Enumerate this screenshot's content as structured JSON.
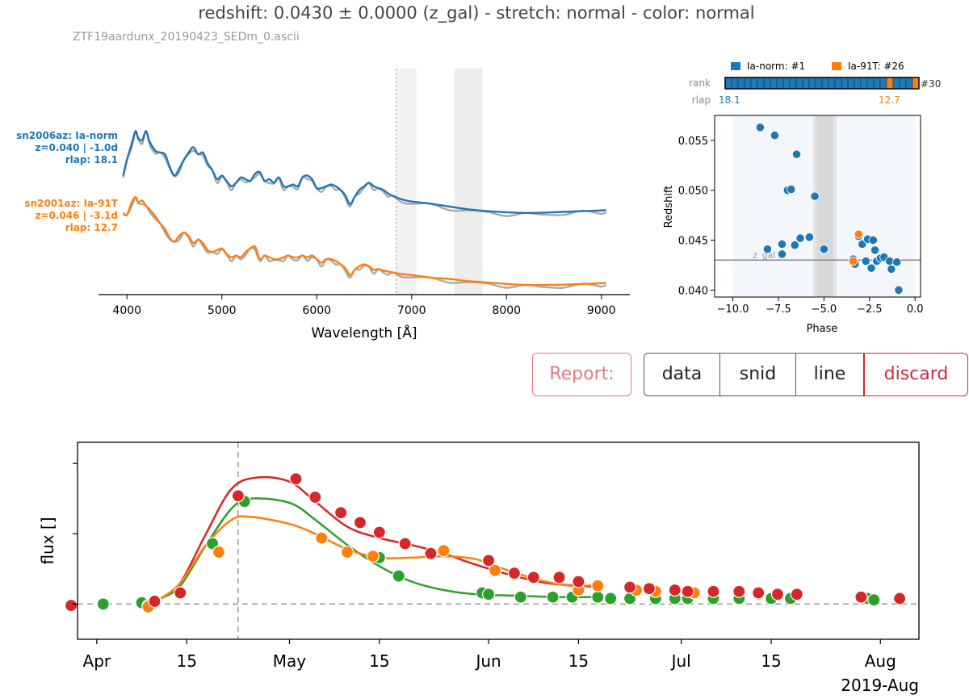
{
  "header": {
    "title": "redshift: 0.0430 ± 0.0000 (z_gal)  -  stretch: normal  -  color: normal",
    "filename": "ZTF19aardunx_20190423_SEDm_0.ascii"
  },
  "actions": {
    "report_label": "Report:",
    "buttons": [
      "data",
      "snid",
      "line",
      "discard"
    ]
  },
  "colors": {
    "blue": "#1f77b4",
    "orange": "#ff7f0e",
    "green": "#2ca02c",
    "red": "#d62728",
    "gray": "#aaaaaa"
  },
  "chart_data": [
    {
      "type": "line",
      "id": "spectrum",
      "xlabel": "Wavelength [Å]",
      "xlim": [
        3700,
        9300
      ],
      "xticks": [
        4000,
        5000,
        6000,
        7000,
        8000,
        9000
      ],
      "vline": 6840,
      "shaded_regions": [
        [
          6850,
          7050
        ],
        [
          7450,
          7750
        ]
      ],
      "series": [
        {
          "name": "sn2006az: Ia-norm",
          "label_lines": [
            "sn2006az: Ia-norm",
            "z=0.040 | -1.0d",
            "rlap: 18.1"
          ],
          "color": "blue",
          "offset": 2.0,
          "x": [
            3960,
            4000,
            4050,
            4090,
            4120,
            4160,
            4200,
            4240,
            4300,
            4350,
            4400,
            4450,
            4500,
            4550,
            4600,
            4650,
            4700,
            4750,
            4800,
            4850,
            4900,
            4950,
            5000,
            5050,
            5100,
            5150,
            5200,
            5250,
            5300,
            5350,
            5400,
            5450,
            5500,
            5550,
            5600,
            5650,
            5700,
            5750,
            5800,
            5850,
            5900,
            5950,
            6000,
            6050,
            6100,
            6150,
            6200,
            6250,
            6300,
            6350,
            6400,
            6450,
            6500,
            6550,
            6600,
            6650,
            6700,
            6750,
            6800,
            6900,
            7000,
            7200,
            7400,
            7600,
            7800,
            8000,
            8200,
            8400,
            8600,
            8800,
            9000,
            9050
          ],
          "y": [
            1.35,
            1.8,
            2.25,
            2.6,
            2.4,
            2.35,
            2.6,
            2.3,
            2.05,
            2.0,
            1.95,
            1.6,
            1.35,
            1.55,
            1.8,
            2.0,
            2.15,
            1.95,
            2.0,
            1.7,
            1.5,
            1.25,
            1.35,
            1.2,
            1.05,
            1.15,
            1.3,
            1.25,
            1.2,
            1.4,
            1.45,
            1.2,
            1.25,
            1.15,
            1.3,
            1.05,
            1.05,
            1.1,
            1.05,
            1.3,
            1.35,
            1.25,
            1.0,
            1.0,
            1.05,
            1.1,
            1.05,
            0.95,
            0.8,
            0.55,
            0.75,
            0.95,
            1.05,
            1.15,
            1.05,
            1.0,
            0.95,
            0.85,
            0.78,
            0.68,
            0.62,
            0.56,
            0.48,
            0.4,
            0.35,
            0.32,
            0.3,
            0.31,
            0.33,
            0.35,
            0.37,
            0.38
          ]
        },
        {
          "name": "sn2001az: Ia-91T",
          "label_lines": [
            "sn2001az: Ia-91T",
            "z=0.046 | -3.1d",
            "rlap: 12.7"
          ],
          "color": "orange",
          "offset": 0.0,
          "x": [
            3960,
            4000,
            4050,
            4090,
            4120,
            4160,
            4200,
            4240,
            4300,
            4350,
            4400,
            4450,
            4500,
            4550,
            4600,
            4650,
            4700,
            4750,
            4800,
            4850,
            4900,
            4950,
            5000,
            5050,
            5100,
            5150,
            5200,
            5250,
            5300,
            5350,
            5400,
            5450,
            5500,
            5550,
            5600,
            5650,
            5700,
            5750,
            5800,
            5850,
            5900,
            5950,
            6000,
            6050,
            6100,
            6150,
            6200,
            6250,
            6300,
            6350,
            6400,
            6450,
            6500,
            6550,
            6600,
            6650,
            6700,
            6750,
            6800,
            6900,
            7000,
            7200,
            7400,
            7600,
            7800,
            8000,
            8200,
            8400,
            8600,
            8800,
            9000,
            9050
          ],
          "y": [
            2.3,
            2.25,
            2.6,
            2.75,
            2.6,
            2.65,
            2.5,
            2.4,
            2.2,
            2.0,
            1.85,
            1.6,
            1.5,
            1.65,
            1.75,
            1.65,
            1.45,
            1.55,
            1.45,
            1.25,
            1.2,
            1.25,
            1.3,
            1.15,
            1.05,
            1.1,
            1.05,
            1.2,
            1.3,
            1.35,
            1.0,
            1.1,
            1.05,
            1.0,
            1.0,
            1.05,
            1.1,
            1.05,
            1.05,
            1.1,
            1.05,
            1.1,
            1.0,
            0.9,
            1.0,
            1.0,
            0.95,
            0.85,
            0.75,
            0.55,
            0.7,
            0.8,
            0.85,
            0.8,
            0.7,
            0.72,
            0.68,
            0.65,
            0.62,
            0.58,
            0.55,
            0.48,
            0.44,
            0.38,
            0.34,
            0.3,
            0.27,
            0.27,
            0.28,
            0.3,
            0.32,
            0.33
          ]
        }
      ]
    },
    {
      "type": "scatter",
      "id": "redshift-phase",
      "xlabel": "Phase",
      "ylabel": "Redshift",
      "xlim": [
        -11.0,
        0.3
      ],
      "ylim": [
        0.0393,
        0.0575
      ],
      "xticks": [
        -10.0,
        -7.5,
        -5.0,
        -2.5,
        0.0
      ],
      "xtick_labels": [
        "−10.0",
        "−7.5",
        "−5.0",
        "−2.5",
        "0.0"
      ],
      "yticks": [
        0.04,
        0.045,
        0.05,
        0.055
      ],
      "yticks_labels": [
        "0.040",
        "0.045",
        "0.050",
        "0.055"
      ],
      "hline": {
        "y": 0.043,
        "label": "z_gal"
      },
      "shaded_phase": [
        [
          -5.6,
          -4.3
        ],
        [
          -5.4,
          -4.5
        ]
      ],
      "legend": [
        "Ia-norm: #1",
        "Ia-91T: #26"
      ],
      "rank_label": "rank",
      "rank_end": "#30",
      "rank_total": 30,
      "rank_orange": [
        26,
        30
      ],
      "rlap_label": "rlap",
      "rlap_blue": "18.1",
      "rlap_orange": "12.7",
      "series": [
        {
          "name": "Ia-norm",
          "color": "blue",
          "points": [
            [
              -8.5,
              0.0563
            ],
            [
              -7.7,
              0.0555
            ],
            [
              -6.5,
              0.0536
            ],
            [
              -7.0,
              0.05
            ],
            [
              -6.8,
              0.0501
            ],
            [
              -5.5,
              0.0494
            ],
            [
              -7.3,
              0.0446
            ],
            [
              -6.3,
              0.0452
            ],
            [
              -5.8,
              0.0453
            ],
            [
              -5.0,
              0.0441
            ],
            [
              -8.1,
              0.0441
            ],
            [
              -7.3,
              0.0436
            ],
            [
              -6.6,
              0.0445
            ],
            [
              -3.4,
              0.0431
            ],
            [
              -3.3,
              0.0426
            ],
            [
              -3.1,
              0.0454
            ],
            [
              -2.9,
              0.0446
            ],
            [
              -2.6,
              0.0451
            ],
            [
              -2.3,
              0.045
            ],
            [
              -2.7,
              0.0429
            ],
            [
              -2.4,
              0.0422
            ],
            [
              -2.1,
              0.0429
            ],
            [
              -1.9,
              0.0432
            ],
            [
              -1.7,
              0.0433
            ],
            [
              -1.4,
              0.0429
            ],
            [
              -1.3,
              0.0421
            ],
            [
              -1.0,
              0.0428
            ],
            [
              -0.9,
              0.04
            ],
            [
              -2.2,
              0.044
            ]
          ]
        },
        {
          "name": "Ia-91T",
          "color": "orange",
          "points": [
            [
              -3.4,
              0.0429
            ],
            [
              -3.1,
              0.0456
            ]
          ]
        }
      ]
    },
    {
      "type": "line",
      "id": "lightcurve",
      "ylabel": "flux []",
      "x_is_dates": true,
      "xlim": [
        "2019-03-29",
        "2019-08-07"
      ],
      "xticks": [
        "2019-04-01",
        "2019-04-15",
        "2019-05-01",
        "2019-05-15",
        "2019-06-01",
        "2019-06-15",
        "2019-07-01",
        "2019-07-15",
        "2019-08-01"
      ],
      "xtick_labels": [
        "Apr",
        "15",
        "May",
        "15",
        "Jun",
        "15",
        "Jul",
        "15",
        "Aug"
      ],
      "x_offset_label": "2019-Aug",
      "ylim": [
        -0.25,
        1.15
      ],
      "yticks": [
        0.0,
        0.5,
        1.0
      ],
      "vline": "2019-04-23",
      "series": [
        {
          "name": "red",
          "color": "red",
          "curve": [
            [
              "2019-04-11",
              0.04
            ],
            [
              "2019-04-14",
              0.15
            ],
            [
              "2019-04-18",
              0.5
            ],
            [
              "2019-04-22",
              0.82
            ],
            [
              "2019-04-26",
              0.9
            ],
            [
              "2019-05-01",
              0.87
            ],
            [
              "2019-05-05",
              0.73
            ],
            [
              "2019-05-10",
              0.55
            ],
            [
              "2019-05-15",
              0.47
            ],
            [
              "2019-05-20",
              0.42
            ],
            [
              "2019-05-25",
              0.36
            ],
            [
              "2019-05-30",
              0.28
            ],
            [
              "2019-06-05",
              0.2
            ],
            [
              "2019-06-10",
              0.15
            ],
            [
              "2019-06-15",
              0.13
            ],
            [
              "2019-06-19",
              0.12
            ]
          ],
          "points": [
            [
              "2019-03-28",
              -0.01
            ],
            [
              "2019-04-10",
              0.02
            ],
            [
              "2019-04-14",
              0.08
            ],
            [
              "2019-04-23",
              0.77
            ],
            [
              "2019-05-02",
              0.89
            ],
            [
              "2019-05-05",
              0.76
            ],
            [
              "2019-05-09",
              0.65
            ],
            [
              "2019-05-12",
              0.58
            ],
            [
              "2019-05-15",
              0.51
            ],
            [
              "2019-05-19",
              0.43
            ],
            [
              "2019-05-23",
              0.36
            ],
            [
              "2019-06-01",
              0.31
            ],
            [
              "2019-06-05",
              0.22
            ],
            [
              "2019-06-08",
              0.19
            ],
            [
              "2019-06-12",
              0.19
            ],
            [
              "2019-06-15",
              0.16
            ],
            [
              "2019-06-23",
              0.12
            ],
            [
              "2019-06-26",
              0.11
            ],
            [
              "2019-06-30",
              0.1
            ],
            [
              "2019-07-02",
              0.09
            ],
            [
              "2019-07-06",
              0.09
            ],
            [
              "2019-07-10",
              0.09
            ],
            [
              "2019-07-13",
              0.08
            ],
            [
              "2019-07-16",
              0.07
            ],
            [
              "2019-07-19",
              0.07
            ],
            [
              "2019-07-29",
              0.05
            ],
            [
              "2019-08-04",
              0.04
            ]
          ]
        },
        {
          "name": "green",
          "color": "green",
          "curve": [
            [
              "2019-04-11",
              0.04
            ],
            [
              "2019-04-14",
              0.13
            ],
            [
              "2019-04-18",
              0.42
            ],
            [
              "2019-04-22",
              0.68
            ],
            [
              "2019-04-25",
              0.75
            ],
            [
              "2019-05-01",
              0.72
            ],
            [
              "2019-05-05",
              0.6
            ],
            [
              "2019-05-10",
              0.42
            ],
            [
              "2019-05-15",
              0.27
            ],
            [
              "2019-05-20",
              0.16
            ],
            [
              "2019-05-25",
              0.1
            ],
            [
              "2019-05-30",
              0.07
            ],
            [
              "2019-06-05",
              0.06
            ],
            [
              "2019-06-12",
              0.05
            ],
            [
              "2019-06-18",
              0.05
            ]
          ],
          "points": [
            [
              "2019-04-02",
              0.0
            ],
            [
              "2019-04-08",
              0.01
            ],
            [
              "2019-04-09",
              -0.01
            ],
            [
              "2019-04-19",
              0.43
            ],
            [
              "2019-04-24",
              0.73
            ],
            [
              "2019-05-15",
              0.33
            ],
            [
              "2019-05-18",
              0.2
            ],
            [
              "2019-05-31",
              0.08
            ],
            [
              "2019-06-01",
              0.07
            ],
            [
              "2019-06-06",
              0.05
            ],
            [
              "2019-06-11",
              0.05
            ],
            [
              "2019-06-14",
              0.05
            ],
            [
              "2019-06-18",
              0.05
            ],
            [
              "2019-06-20",
              0.04
            ],
            [
              "2019-06-23",
              0.04
            ],
            [
              "2019-06-27",
              0.04
            ],
            [
              "2019-06-30",
              0.04
            ],
            [
              "2019-07-02",
              0.04
            ],
            [
              "2019-07-06",
              0.04
            ],
            [
              "2019-07-10",
              0.04
            ],
            [
              "2019-07-15",
              0.04
            ],
            [
              "2019-07-18",
              0.04
            ],
            [
              "2019-07-30",
              0.04
            ],
            [
              "2019-07-31",
              0.03
            ]
          ]
        },
        {
          "name": "orange",
          "color": "orange",
          "curve": [
            [
              "2019-04-11",
              0.04
            ],
            [
              "2019-04-14",
              0.15
            ],
            [
              "2019-04-18",
              0.42
            ],
            [
              "2019-04-22",
              0.6
            ],
            [
              "2019-04-25",
              0.62
            ],
            [
              "2019-05-01",
              0.57
            ],
            [
              "2019-05-05",
              0.5
            ],
            [
              "2019-05-10",
              0.39
            ],
            [
              "2019-05-15",
              0.33
            ],
            [
              "2019-05-20",
              0.33
            ],
            [
              "2019-05-25",
              0.34
            ],
            [
              "2019-05-30",
              0.32
            ],
            [
              "2019-06-04",
              0.24
            ],
            [
              "2019-06-09",
              0.17
            ],
            [
              "2019-06-14",
              0.13
            ],
            [
              "2019-06-19",
              0.14
            ]
          ],
          "points": [
            [
              "2019-04-09",
              -0.02
            ],
            [
              "2019-04-20",
              0.37
            ],
            [
              "2019-05-06",
              0.47
            ],
            [
              "2019-05-10",
              0.37
            ],
            [
              "2019-05-14",
              0.34
            ],
            [
              "2019-05-25",
              0.38
            ],
            [
              "2019-06-02",
              0.24
            ],
            [
              "2019-06-05",
              0.21
            ],
            [
              "2019-06-15",
              0.1
            ],
            [
              "2019-06-18",
              0.13
            ],
            [
              "2019-06-24",
              0.1
            ],
            [
              "2019-06-27",
              0.09
            ],
            [
              "2019-07-03",
              0.08
            ],
            [
              "2019-07-13",
              0.07
            ],
            [
              "2019-07-29",
              0.05
            ]
          ]
        }
      ]
    }
  ]
}
